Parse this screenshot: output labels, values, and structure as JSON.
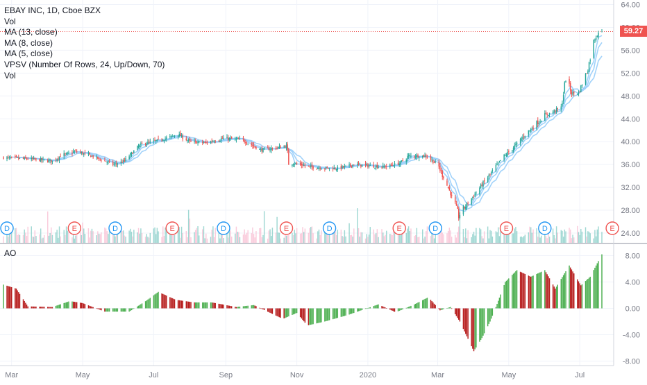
{
  "legend": {
    "symbol_line": "EBAY INC, 1D, Cboe BZX",
    "studies": [
      "Vol",
      "MA (13, close)",
      "MA (8, close)",
      "MA (5, close)",
      "VPSV (Number Of Rows, 24, Up/Down, 70)",
      "Vol"
    ]
  },
  "last_price_label": "59.27",
  "ao_label": "AO",
  "colors": {
    "up": "#26a69a",
    "down": "#ef5350",
    "ma": "#90caf9",
    "ao_up": "#4caf50",
    "ao_down": "#b71c1c",
    "grid": "#f0f3fa",
    "axis_text": "#787b86",
    "price_line": "#ef5350"
  },
  "chart_data": [
    {
      "type": "candlestick",
      "title": "EBAY INC, 1D, Cboe BZX",
      "ylim": [
        23,
        64.5
      ],
      "price_ticks": [
        "64.00",
        "60.00",
        "56.00",
        "52.00",
        "48.00",
        "44.00",
        "40.00",
        "36.00",
        "32.00",
        "28.00",
        "24.00"
      ],
      "x_ticks": [
        {
          "label": "Mar",
          "date": "2019-03-01"
        },
        {
          "label": "May",
          "date": "2019-05-01"
        },
        {
          "label": "Jul",
          "date": "2019-07-01"
        },
        {
          "label": "Sep",
          "date": "2019-09-01"
        },
        {
          "label": "Nov",
          "date": "2019-11-01"
        },
        {
          "label": "2020",
          "date": "2020-01-01"
        },
        {
          "label": "Mar",
          "date": "2020-03-01"
        },
        {
          "label": "May",
          "date": "2020-05-01"
        },
        {
          "label": "Jul",
          "date": "2020-07-01"
        }
      ],
      "close_anchors": [
        [
          "2019-02-22",
          37.2
        ],
        [
          "2019-03-15",
          37.0
        ],
        [
          "2019-04-05",
          36.6
        ],
        [
          "2019-04-12",
          37.5
        ],
        [
          "2019-04-25",
          38.3
        ],
        [
          "2019-05-10",
          37.4
        ],
        [
          "2019-05-28",
          36.0
        ],
        [
          "2019-06-05",
          36.5
        ],
        [
          "2019-06-20",
          39.5
        ],
        [
          "2019-07-10",
          40.5
        ],
        [
          "2019-07-22",
          41.3
        ],
        [
          "2019-08-01",
          40.0
        ],
        [
          "2019-08-15",
          39.8
        ],
        [
          "2019-08-30",
          40.6
        ],
        [
          "2019-09-15",
          40.3
        ],
        [
          "2019-10-01",
          38.5
        ],
        [
          "2019-10-23",
          39.2
        ],
        [
          "2019-10-25",
          36.4
        ],
        [
          "2019-11-15",
          35.5
        ],
        [
          "2019-12-05",
          35.3
        ],
        [
          "2019-12-20",
          36.0
        ],
        [
          "2020-01-15",
          35.6
        ],
        [
          "2020-01-28",
          36.2
        ],
        [
          "2020-02-05",
          37.5
        ],
        [
          "2020-02-20",
          37.5
        ],
        [
          "2020-03-01",
          36.0
        ],
        [
          "2020-03-12",
          31.0
        ],
        [
          "2020-03-19",
          27.0
        ],
        [
          "2020-03-26",
          29.0
        ],
        [
          "2020-04-10",
          33.0
        ],
        [
          "2020-04-25",
          37.0
        ],
        [
          "2020-05-05",
          39.0
        ],
        [
          "2020-05-15",
          41.2
        ],
        [
          "2020-06-01",
          44.5
        ],
        [
          "2020-06-15",
          46.0
        ],
        [
          "2020-06-19",
          51.0
        ],
        [
          "2020-06-24",
          48.5
        ],
        [
          "2020-06-30",
          48.5
        ],
        [
          "2020-07-07",
          52.0
        ],
        [
          "2020-07-14",
          58.0
        ],
        [
          "2020-07-17",
          59.27
        ]
      ],
      "moving_averages": [
        {
          "name": "MA (13, close)",
          "period": 13
        },
        {
          "name": "MA (8, close)",
          "period": 8
        },
        {
          "name": "MA (5, close)",
          "period": 5
        }
      ],
      "volume_notes": "volume bars along bottom of price pane; spikes near Mar 2020 and early Jun 2020",
      "event_markers": [
        {
          "date": "2019-02-25",
          "kind": "D"
        },
        {
          "date": "2019-04-24",
          "kind": "E"
        },
        {
          "date": "2019-05-29",
          "kind": "D"
        },
        {
          "date": "2019-07-17",
          "kind": "E"
        },
        {
          "date": "2019-08-30",
          "kind": "D"
        },
        {
          "date": "2019-10-23",
          "kind": "E"
        },
        {
          "date": "2019-11-29",
          "kind": "D"
        },
        {
          "date": "2020-01-28",
          "kind": "E"
        },
        {
          "date": "2020-02-28",
          "kind": "D"
        },
        {
          "date": "2020-04-29",
          "kind": "E"
        },
        {
          "date": "2020-06-01",
          "kind": "D"
        },
        {
          "date": "2020-07-29",
          "kind": "E"
        }
      ],
      "last_price": 59.27
    },
    {
      "type": "bar",
      "title": "AO",
      "ylim": [
        -8.2,
        9.5
      ],
      "y_ticks": [
        "8.00",
        "4.00",
        "0.00",
        "-4.00",
        "-8.00"
      ],
      "ao_anchors": [
        [
          "2019-02-22",
          3.6
        ],
        [
          "2019-03-05",
          3.0
        ],
        [
          "2019-03-15",
          0.3
        ],
        [
          "2019-04-05",
          0.2
        ],
        [
          "2019-04-20",
          1.1
        ],
        [
          "2019-05-01",
          0.8
        ],
        [
          "2019-05-20",
          -0.5
        ],
        [
          "2019-06-10",
          -0.5
        ],
        [
          "2019-06-25",
          1.2
        ],
        [
          "2019-07-05",
          2.5
        ],
        [
          "2019-07-20",
          1.3
        ],
        [
          "2019-08-05",
          0.9
        ],
        [
          "2019-08-20",
          0.9
        ],
        [
          "2019-09-10",
          0.2
        ],
        [
          "2019-09-25",
          0.5
        ],
        [
          "2019-10-20",
          -1.6
        ],
        [
          "2019-11-01",
          -0.7
        ],
        [
          "2019-11-10",
          -2.6
        ],
        [
          "2019-11-25",
          -2.0
        ],
        [
          "2019-12-15",
          -1.0
        ],
        [
          "2020-01-10",
          0.6
        ],
        [
          "2020-01-25",
          -0.6
        ],
        [
          "2020-02-10",
          0.6
        ],
        [
          "2020-02-22",
          1.7
        ],
        [
          "2020-03-03",
          -0.3
        ],
        [
          "2020-03-12",
          0.2
        ],
        [
          "2020-03-20",
          -2.0
        ],
        [
          "2020-04-01",
          -6.5
        ],
        [
          "2020-04-08",
          -4.5
        ],
        [
          "2020-04-15",
          -2.0
        ],
        [
          "2020-04-20",
          0.2
        ],
        [
          "2020-04-28",
          4.0
        ],
        [
          "2020-05-08",
          5.8
        ],
        [
          "2020-05-20",
          4.8
        ],
        [
          "2020-06-01",
          5.8
        ],
        [
          "2020-06-10",
          3.0
        ],
        [
          "2020-06-22",
          6.5
        ],
        [
          "2020-07-02",
          3.5
        ],
        [
          "2020-07-10",
          4.8
        ],
        [
          "2020-07-20",
          8.2
        ]
      ]
    }
  ]
}
